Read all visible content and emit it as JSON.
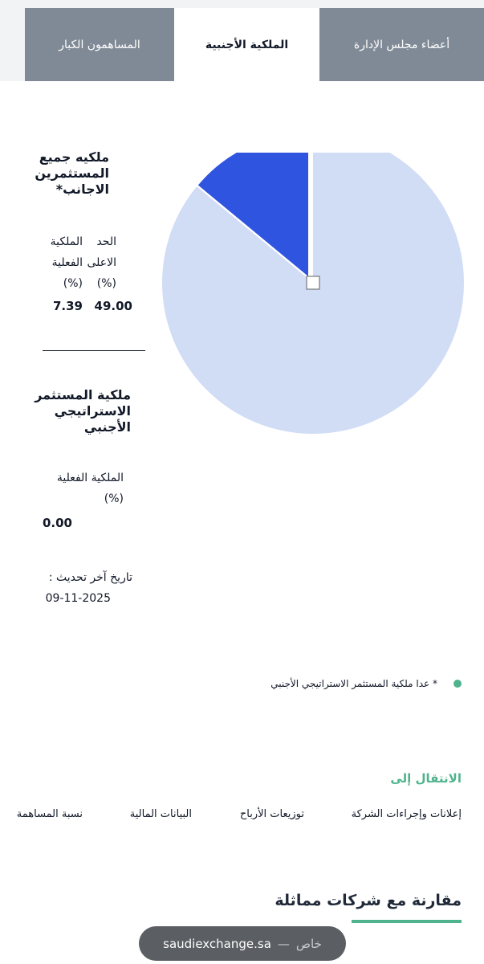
{
  "tabs": [
    {
      "label": "أعضاء مجلس الإدارة"
    },
    {
      "label": "الملكية الأجنبية"
    },
    {
      "label": "المساهمون الكبار"
    }
  ],
  "foreign_all": {
    "heading_lines": [
      "ملكيه جميع",
      "المستثمرين",
      "الاجانب*"
    ],
    "max_label_lines": [
      "الحد",
      "الاعلى",
      "(%)"
    ],
    "actual_label_lines": [
      "الملكية",
      "الفعلية",
      "(%)"
    ],
    "max_value": "49.00",
    "actual_value": "7.39"
  },
  "strategic": {
    "heading_lines": [
      "ملكية المستثمر",
      "الاستراتيجي",
      "الأجنبي"
    ],
    "actual_label_lines": [
      "الملكية الفعلية",
      "(%)"
    ],
    "actual_value": "0.00"
  },
  "update": {
    "label": "تاريخ آخر تحديث :",
    "date": "09-11-2025"
  },
  "footnote": "* عدا ملكية المستثمر الاستراتيجي الأجنبي",
  "nav": {
    "title": "الانتقال إلى",
    "links": [
      "إعلانات وإجراءات الشركة",
      "توزيعات الأرباح",
      "البيانات المالية",
      "نسبة المساهمة"
    ]
  },
  "comparison_title": "مقارنة مع شركات مماثلة",
  "url_bar": {
    "host": "saudiexchange.sa",
    "separator": "—",
    "mode": "خاص"
  },
  "chart_data": {
    "type": "pie",
    "slices": [
      {
        "value": 14.0,
        "color": "#2f54df"
      },
      {
        "value": 86.0,
        "color": "#d1dcf5"
      }
    ]
  },
  "colors": {
    "accent": "#4fb38e",
    "tab_inactive": "#808a96",
    "pie_primary": "#2f54df",
    "pie_secondary": "#d1dcf5"
  }
}
